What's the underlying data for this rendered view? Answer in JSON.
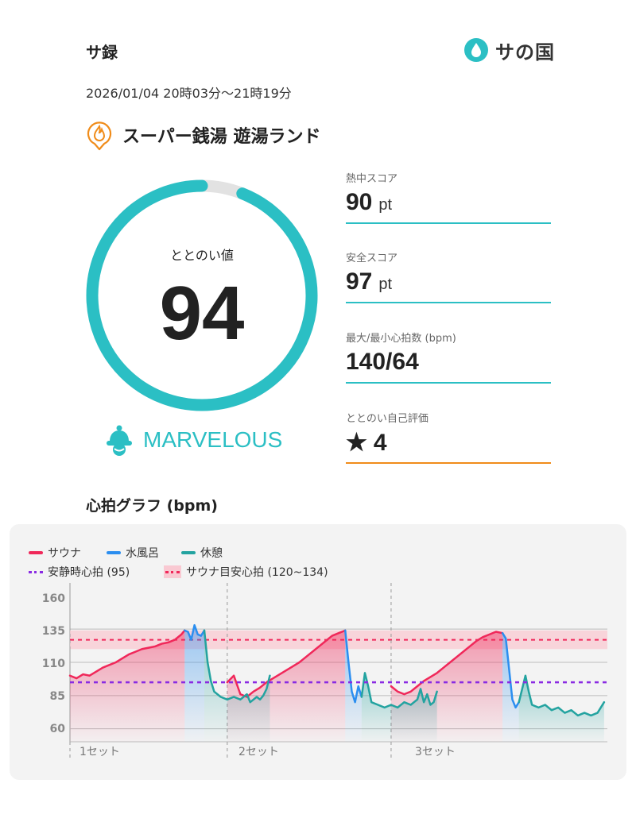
{
  "header": {
    "title": "サ録",
    "logo_text": "サの国",
    "datetime": "2026/01/04 20時03分〜21時19分",
    "facility": "スーパー銭湯 遊湯ランド"
  },
  "score_ring": {
    "label": "ととのい値",
    "value": "94",
    "fraction": 0.94,
    "rating": "MARVELOUS"
  },
  "stats": [
    {
      "label": "熱中スコア",
      "value": "90",
      "unit": "pt"
    },
    {
      "label": "安全スコア",
      "value": "97",
      "unit": "pt"
    },
    {
      "label": "最大/最小心拍数 (bpm)",
      "value": "140/64",
      "unit": ""
    },
    {
      "label": "ととのい自己評価",
      "value": "4",
      "unit": "",
      "star": "★"
    }
  ],
  "graph": {
    "title": "心拍グラフ (bpm)",
    "legend": {
      "sauna": "サウナ",
      "water": "水風呂",
      "rest": "休憩",
      "resting_hr": "安静時心拍 (95)",
      "sauna_target": "サウナ目安心拍 (120~134)"
    },
    "sets": [
      "1セット",
      "2セット",
      "3セット"
    ]
  },
  "colors": {
    "accent": "#2bbfc4",
    "sauna": "#f0285a",
    "water": "#2b8ef0",
    "rest": "#23a3a0",
    "resting": "#8a2be2",
    "target_band": "#f9c9d2",
    "orange": "#f08c1a"
  },
  "chart_data": {
    "type": "line",
    "ylabel": "",
    "yticks": [
      160,
      135,
      110,
      85,
      60
    ],
    "ylim": [
      55,
      165
    ],
    "reference_lines": [
      {
        "name": "安静時心拍 (95)",
        "value": 95
      },
      {
        "name": "サウナ目安心拍 (120~134)",
        "range": [
          120,
          134
        ]
      }
    ],
    "series": [
      {
        "name": "サウナ",
        "segments": [
          [
            [
              0,
              100
            ],
            [
              2,
              98
            ],
            [
              4,
              101
            ],
            [
              6,
              100
            ],
            [
              8,
              103
            ],
            [
              10,
              106
            ],
            [
              12,
              108
            ],
            [
              14,
              110
            ],
            [
              16,
              113
            ],
            [
              18,
              116
            ],
            [
              20,
              118
            ],
            [
              22,
              120
            ],
            [
              24,
              121
            ],
            [
              26,
              122
            ],
            [
              28,
              124
            ],
            [
              30,
              125
            ],
            [
              32,
              127
            ],
            [
              34,
              131
            ],
            [
              35,
              134
            ]
          ],
          [
            [
              48,
              95
            ],
            [
              50,
              100
            ],
            [
              52,
              86
            ],
            [
              54,
              84
            ],
            [
              56,
              88
            ],
            [
              58,
              91
            ],
            [
              60,
              95
            ],
            [
              62,
              98
            ],
            [
              64,
              101
            ],
            [
              66,
              104
            ],
            [
              68,
              107
            ],
            [
              70,
              110
            ],
            [
              72,
              114
            ],
            [
              74,
              118
            ],
            [
              76,
              122
            ],
            [
              78,
              126
            ],
            [
              80,
              130
            ],
            [
              82,
              132
            ],
            [
              84,
              134
            ]
          ],
          [
            [
              98,
              92
            ],
            [
              100,
              88
            ],
            [
              102,
              86
            ],
            [
              104,
              88
            ],
            [
              106,
              92
            ],
            [
              108,
              96
            ],
            [
              110,
              99
            ],
            [
              112,
              102
            ],
            [
              114,
              106
            ],
            [
              116,
              110
            ],
            [
              118,
              114
            ],
            [
              120,
              118
            ],
            [
              122,
              122
            ],
            [
              124,
              126
            ],
            [
              126,
              129
            ],
            [
              128,
              131
            ],
            [
              130,
              133
            ],
            [
              132,
              132
            ]
          ]
        ]
      },
      {
        "name": "水風呂",
        "segments": [
          [
            [
              35,
              134
            ],
            [
              36,
              133
            ],
            [
              37,
              127
            ],
            [
              38,
              138
            ],
            [
              39,
              131
            ],
            [
              40,
              130
            ],
            [
              41,
              134
            ]
          ],
          [
            [
              84,
              134
            ],
            [
              85,
              110
            ],
            [
              86,
              88
            ],
            [
              87,
              80
            ],
            [
              88,
              92
            ],
            [
              89,
              84
            ]
          ],
          [
            [
              132,
              132
            ],
            [
              133,
              128
            ],
            [
              134,
              105
            ],
            [
              135,
              82
            ],
            [
              136,
              76
            ],
            [
              137,
              80
            ]
          ]
        ]
      },
      {
        "name": "休憩",
        "segments": [
          [
            [
              41,
              134
            ],
            [
              42,
              110
            ],
            [
              43,
              96
            ],
            [
              44,
              88
            ],
            [
              46,
              84
            ],
            [
              48,
              82
            ],
            [
              50,
              84
            ],
            [
              52,
              82
            ],
            [
              54,
              86
            ],
            [
              55,
              80
            ],
            [
              57,
              84
            ],
            [
              58,
              82
            ],
            [
              59,
              85
            ],
            [
              60,
              90
            ],
            [
              61,
              100
            ]
          ],
          [
            [
              89,
              84
            ],
            [
              90,
              102
            ],
            [
              91,
              92
            ],
            [
              92,
              80
            ],
            [
              94,
              78
            ],
            [
              96,
              76
            ],
            [
              98,
              78
            ],
            [
              100,
              76
            ],
            [
              102,
              80
            ],
            [
              104,
              78
            ],
            [
              106,
              82
            ],
            [
              107,
              90
            ],
            [
              108,
              80
            ],
            [
              109,
              86
            ],
            [
              110,
              78
            ],
            [
              111,
              80
            ],
            [
              112,
              88
            ]
          ],
          [
            [
              137,
              80
            ],
            [
              138,
              90
            ],
            [
              139,
              100
            ],
            [
              140,
              88
            ],
            [
              141,
              78
            ],
            [
              143,
              76
            ],
            [
              145,
              78
            ],
            [
              147,
              74
            ],
            [
              149,
              76
            ],
            [
              151,
              72
            ],
            [
              153,
              74
            ],
            [
              155,
              70
            ],
            [
              157,
              72
            ],
            [
              159,
              70
            ],
            [
              161,
              72
            ],
            [
              163,
              80
            ]
          ]
        ]
      }
    ]
  }
}
